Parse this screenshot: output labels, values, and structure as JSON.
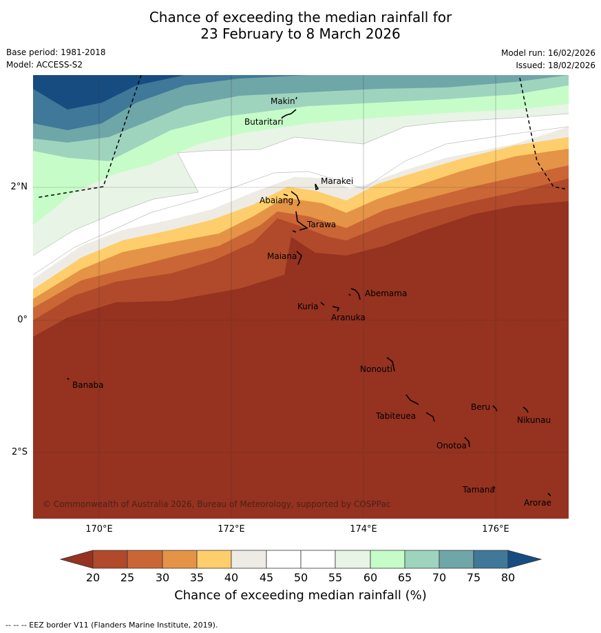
{
  "title": {
    "line1": "Chance of exceeding the median rainfall for",
    "line2": "23 February to 8 March 2026"
  },
  "meta": {
    "base_period": "Base period: 1981-2018",
    "model": "Model: ACCESS-S2",
    "model_run": "Model run: 16/02/2026",
    "issued": "Issued: 18/02/2026"
  },
  "map": {
    "lon_labels": [
      "170°E",
      "172°E",
      "174°E",
      "176°E"
    ],
    "lat_labels": [
      "2°N",
      "0°",
      "2°S"
    ],
    "places": [
      {
        "name": "Makin"
      },
      {
        "name": "Butaritari"
      },
      {
        "name": "Marakei"
      },
      {
        "name": "Abaiang"
      },
      {
        "name": "Tarawa"
      },
      {
        "name": "Maiana"
      },
      {
        "name": "Abemama"
      },
      {
        "name": "Kuria"
      },
      {
        "name": "Aranuka"
      },
      {
        "name": "Nonouti"
      },
      {
        "name": "Banaba"
      },
      {
        "name": "Beru"
      },
      {
        "name": "Tabiteuea"
      },
      {
        "name": "Nikunau"
      },
      {
        "name": "Onotoa"
      },
      {
        "name": "Tamana"
      },
      {
        "name": "Arorae"
      }
    ],
    "copyright": "© Commonwealth of Australia 2026, Bureau of Meteorology, supported by COSPPac"
  },
  "colorbar": {
    "ticks": [
      "20",
      "25",
      "30",
      "35",
      "40",
      "45",
      "50",
      "55",
      "60",
      "65",
      "70",
      "75",
      "80"
    ],
    "colors": {
      "below20": "#953220",
      "c20_25": "#b04a2a",
      "c25_30": "#ca6635",
      "c30_35": "#e49347",
      "c35_40": "#fdce6b",
      "c40_45": "#eeebe5",
      "c45_50": "#ffffff",
      "c50_55": "#ffffff",
      "c55_60": "#e8f4e6",
      "c60_65": "#c6fcc8",
      "c65_70": "#9ed3bd",
      "c70_75": "#6fa6a8",
      "c75_80": "#3f7898",
      "above80": "#164c80"
    },
    "label": "Chance of exceeding median rainfall (%)"
  },
  "footnote": "--  --  -- EEZ border V11 (Flanders Marine Institute, 2019)."
}
